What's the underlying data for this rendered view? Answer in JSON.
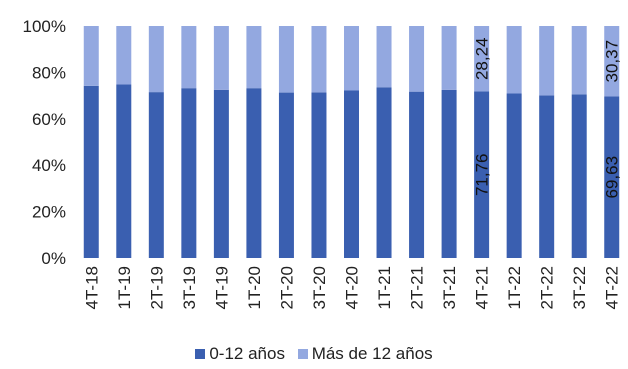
{
  "chart_data": {
    "type": "bar",
    "stacked": true,
    "percent_stacked": true,
    "categories": [
      "4T-18",
      "1T-19",
      "2T-19",
      "3T-19",
      "4T-19",
      "1T-20",
      "2T-20",
      "3T-20",
      "4T-20",
      "1T-21",
      "2T-21",
      "3T-21",
      "4T-21",
      "1T-22",
      "2T-22",
      "3T-22",
      "4T-22"
    ],
    "series": [
      {
        "name": "0-12 años",
        "color": "#3a5fb0",
        "values": [
          74.2,
          74.8,
          71.5,
          73.2,
          72.5,
          73.2,
          71.3,
          71.4,
          72.2,
          73.6,
          71.7,
          72.5,
          71.76,
          70.9,
          70.1,
          70.5,
          69.63
        ]
      },
      {
        "name": "Más de 12 años",
        "color": "#93a8e0",
        "values": [
          25.8,
          25.2,
          28.5,
          26.8,
          27.5,
          26.8,
          28.7,
          28.6,
          27.8,
          26.4,
          28.3,
          27.5,
          28.24,
          29.1,
          29.9,
          29.5,
          30.37
        ]
      }
    ],
    "data_labels": [
      {
        "category": "4T-21",
        "series": "0-12 años",
        "text": "71,76"
      },
      {
        "category": "4T-21",
        "series": "Más de 12 años",
        "text": "28,24"
      },
      {
        "category": "4T-22",
        "series": "0-12 años",
        "text": "69,63"
      },
      {
        "category": "4T-22",
        "series": "Más de 12 años",
        "text": "30,37"
      }
    ],
    "y_ticks": [
      "0%",
      "20%",
      "40%",
      "60%",
      "80%",
      "100%"
    ],
    "ylim": [
      0,
      100
    ],
    "grid": false,
    "legend_position": "bottom"
  }
}
